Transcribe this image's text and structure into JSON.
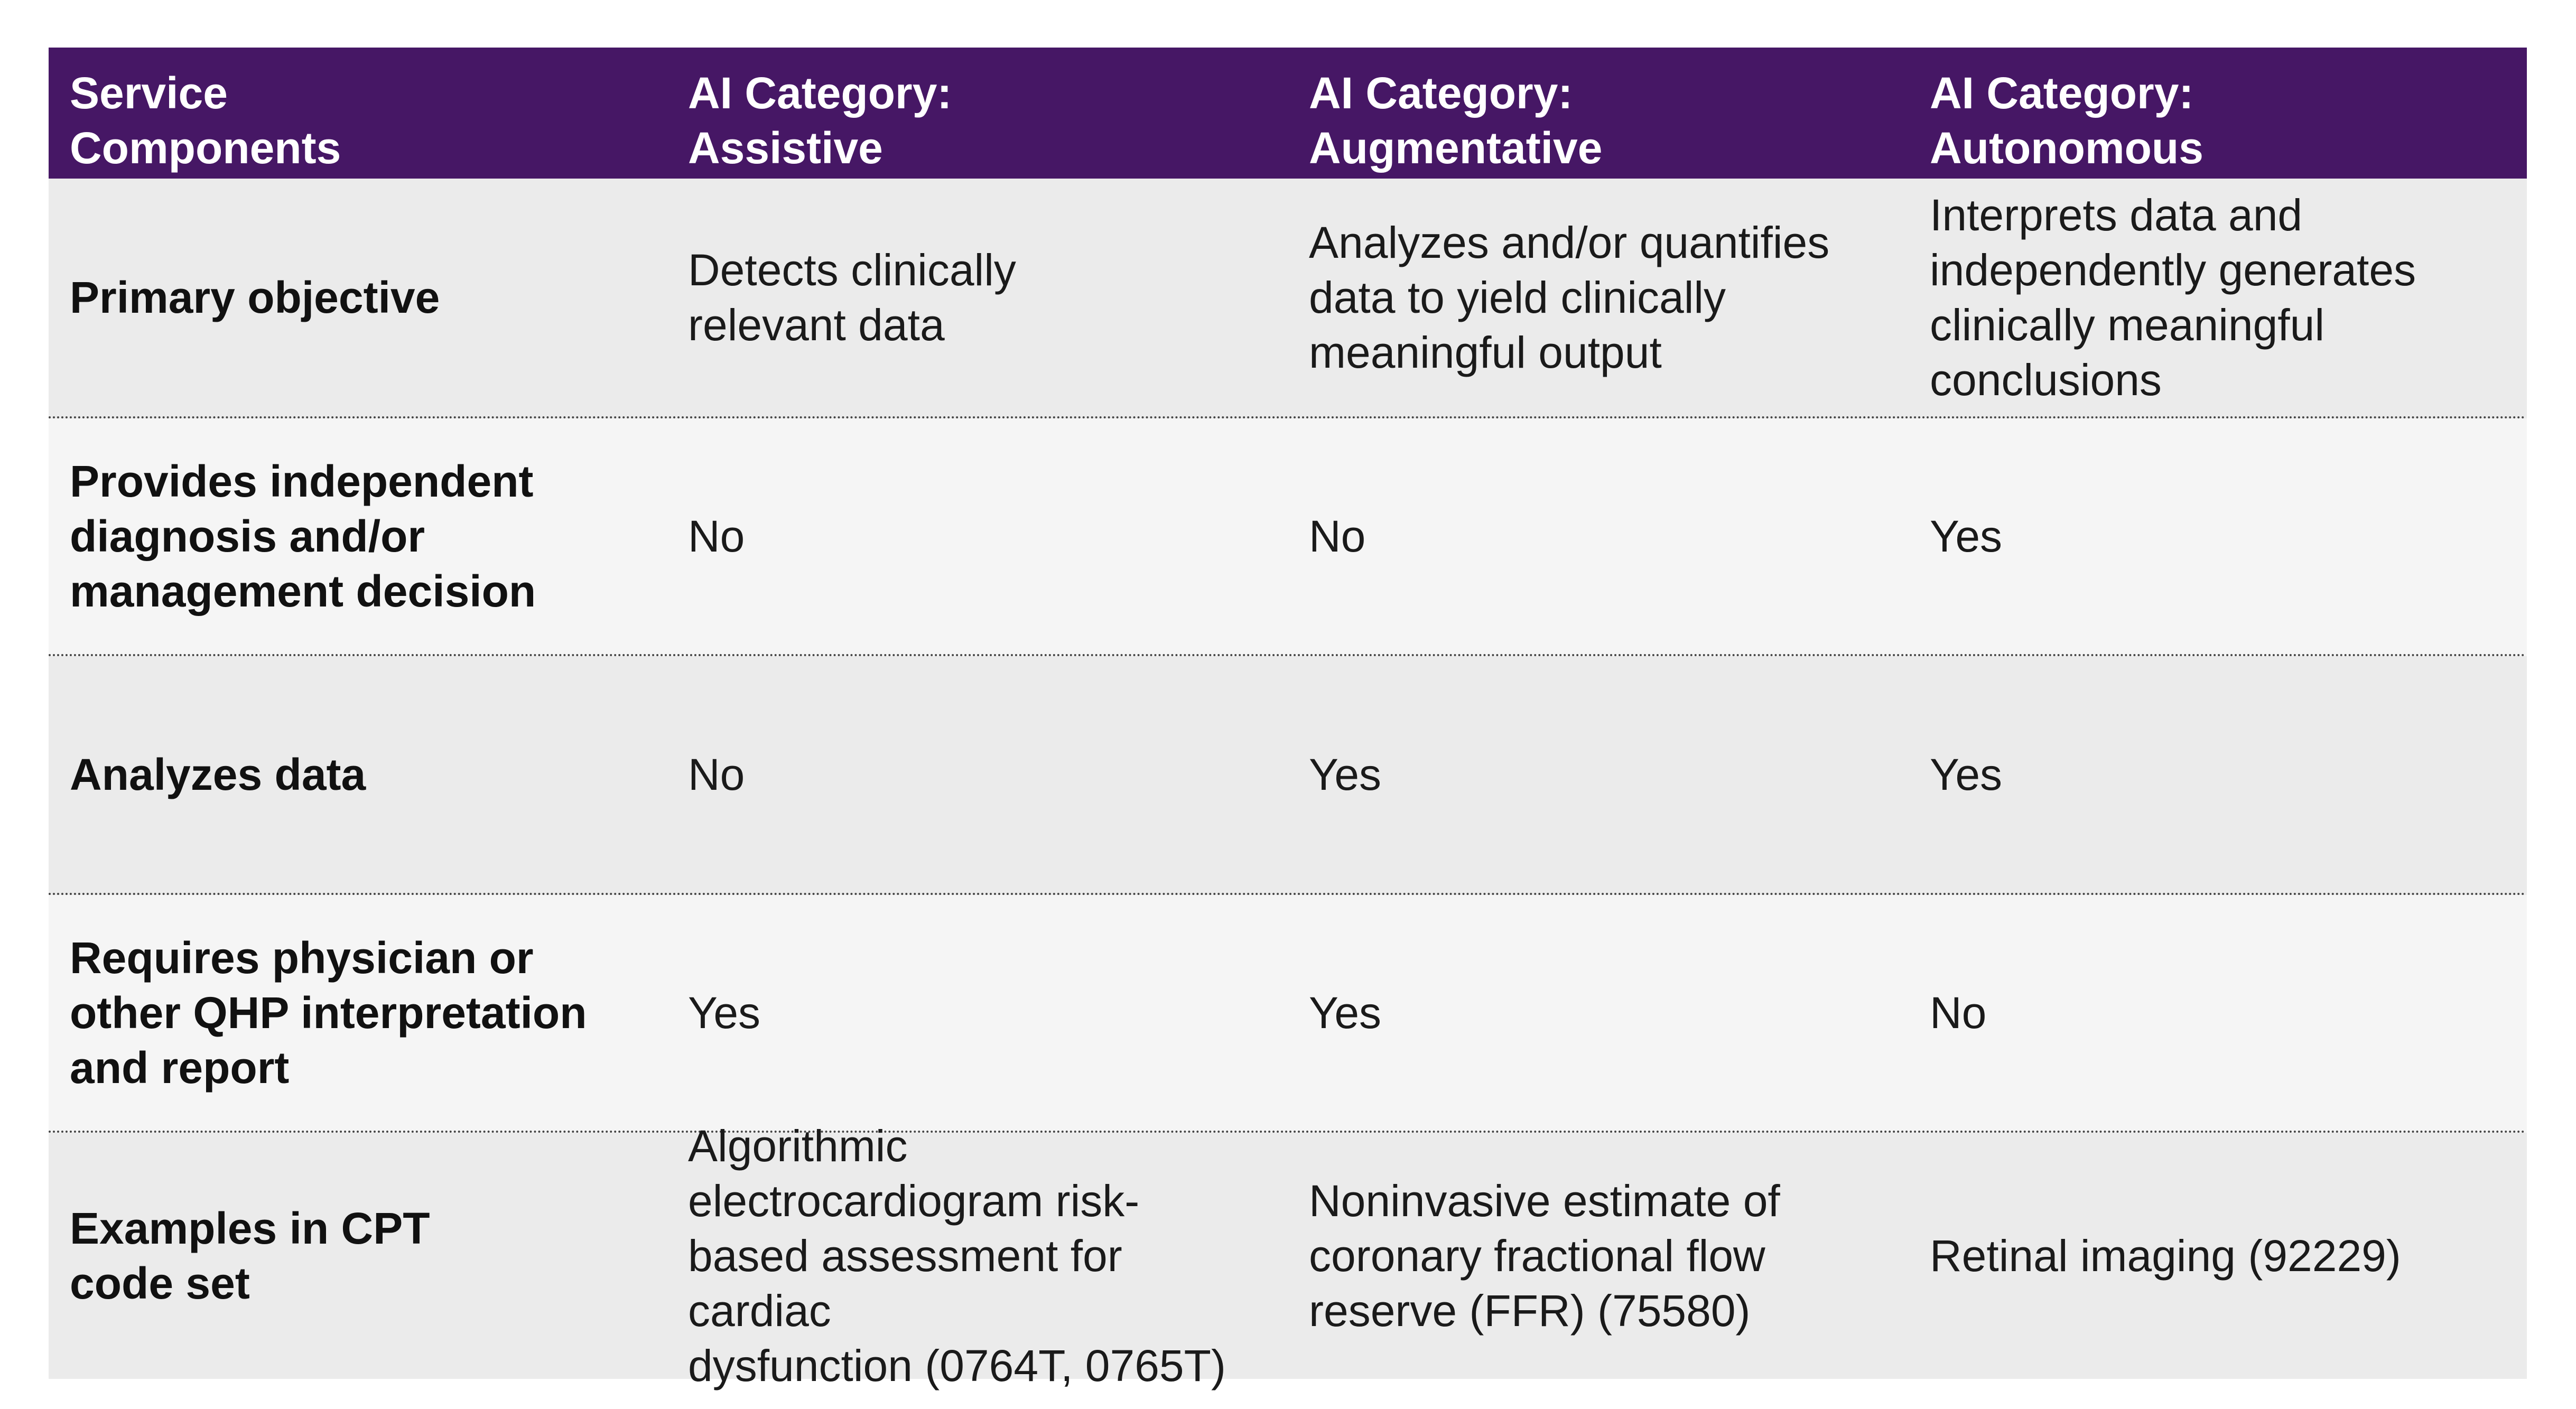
{
  "table": {
    "headers": [
      "Service\nComponents",
      "AI Category:\nAssistive",
      "AI Category:\nAugmentative",
      "AI Category:\nAutonomous"
    ],
    "rows": [
      {
        "label": "Primary objective",
        "assistive": "Detects clinically\nrelevant data",
        "augmentative": "Analyzes and/or quantifies\ndata  to yield clinically\nmeaningful output",
        "autonomous": "Interprets data and\nindependently generates\nclinically meaningful\nconclusions"
      },
      {
        "label": "Provides independent\ndiagnosis and/or\nmanagement decision",
        "assistive": "No",
        "augmentative": "No",
        "autonomous": "Yes"
      },
      {
        "label": "Analyzes data",
        "assistive": "No",
        "augmentative": "Yes",
        "autonomous": "Yes"
      },
      {
        "label": "Requires physician or\nother QHP interpretation\nand report",
        "assistive": "Yes",
        "augmentative": "Yes",
        "autonomous": "No"
      },
      {
        "label": "Examples in CPT\ncode set",
        "assistive": "Algorithmic\nelectrocardiogram risk-\nbased assessment for cardiac\ndysfunction (0764T, 0765T)",
        "augmentative": "Noninvasive estimate of\ncoronary fractional flow\nreserve (FFR) (75580)",
        "autonomous": "Retinal imaging (92229)"
      }
    ]
  },
  "colors": {
    "header_bg": "#461765",
    "row_dark": "#ebebeb",
    "row_light": "#f5f5f5"
  }
}
